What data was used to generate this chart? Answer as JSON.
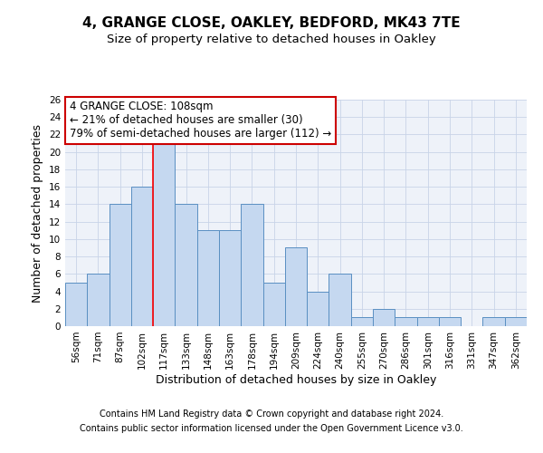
{
  "title_line1": "4, GRANGE CLOSE, OAKLEY, BEDFORD, MK43 7TE",
  "title_line2": "Size of property relative to detached houses in Oakley",
  "xlabel": "Distribution of detached houses by size in Oakley",
  "ylabel": "Number of detached properties",
  "categories": [
    "56sqm",
    "71sqm",
    "87sqm",
    "102sqm",
    "117sqm",
    "133sqm",
    "148sqm",
    "163sqm",
    "178sqm",
    "194sqm",
    "209sqm",
    "224sqm",
    "240sqm",
    "255sqm",
    "270sqm",
    "286sqm",
    "301sqm",
    "316sqm",
    "331sqm",
    "347sqm",
    "362sqm"
  ],
  "values": [
    5,
    6,
    14,
    16,
    21,
    14,
    11,
    11,
    14,
    5,
    9,
    4,
    6,
    1,
    2,
    1,
    1,
    1,
    0,
    1,
    1
  ],
  "bar_color": "#c5d8f0",
  "bar_edge_color": "#5a8fc2",
  "ylim": [
    0,
    26
  ],
  "yticks": [
    0,
    2,
    4,
    6,
    8,
    10,
    12,
    14,
    16,
    18,
    20,
    22,
    24,
    26
  ],
  "grid_color": "#c8d4e8",
  "bg_color": "#eef2f9",
  "annotation_line1": "4 GRANGE CLOSE: 108sqm",
  "annotation_line2": "← 21% of detached houses are smaller (30)",
  "annotation_line3": "79% of semi-detached houses are larger (112) →",
  "annotation_box_color": "#ffffff",
  "annotation_box_edge": "#cc0000",
  "redline_x": 3.5,
  "footer_line1": "Contains HM Land Registry data © Crown copyright and database right 2024.",
  "footer_line2": "Contains public sector information licensed under the Open Government Licence v3.0.",
  "title_fontsize": 11,
  "subtitle_fontsize": 9.5,
  "axis_label_fontsize": 9,
  "tick_fontsize": 7.5,
  "annotation_fontsize": 8.5,
  "footer_fontsize": 7
}
